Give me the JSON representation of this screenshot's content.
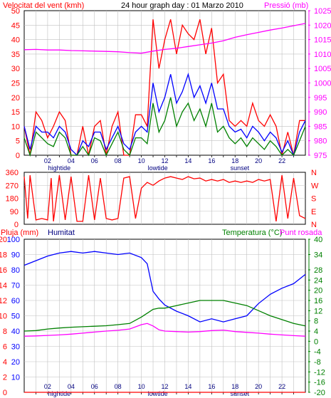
{
  "colors": {
    "background": "#ffffff",
    "wind_speed": "#ff0000",
    "wind_avg": "#008000",
    "wind_mid": "#0000ff",
    "pressure": "#ff00ff",
    "rain": "#ff0000",
    "humidity": "#0000ff",
    "temperature": "#008000",
    "dewpoint": "#ff00ff",
    "tick": "#ff0000",
    "hour_label": "#000080",
    "grid": "#c0c0c0"
  },
  "header": {
    "left_label": "Velocitat del vent (kmh)",
    "title": "24 hour graph day : 01 Marzo 2010",
    "right_label": "Pressió (mb)"
  },
  "bottom_header": {
    "rain_label": "Pluja (mm)",
    "humidity_label": "Humitat",
    "temp_label": "Temperatura (°C)",
    "dew_label": "Punt rosada"
  },
  "hour_labels": [
    "02",
    "04",
    "06",
    "08",
    "10",
    "12",
    "14",
    "16",
    "18",
    "20",
    "22"
  ],
  "events_top": [
    {
      "label": "hightide",
      "hour": 3.0
    },
    {
      "label": "lowtide",
      "hour": 11.4
    },
    {
      "label": "sunset",
      "hour": 18.4
    }
  ],
  "events_bottom": [
    {
      "label": "hightide",
      "hour": 3.0
    },
    {
      "label": "lowtide",
      "hour": 11.4
    },
    {
      "label": "sunset",
      "hour": 18.4
    }
  ],
  "chart_data": [
    {
      "type": "line",
      "panel": "wind_speed_pressure",
      "x_range_hours": [
        0,
        24
      ],
      "y_left": {
        "ticks": [
          "0",
          "5",
          "10",
          "15",
          "20",
          "25",
          "30",
          "35",
          "40",
          "45",
          "50"
        ],
        "ylim": [
          0,
          50
        ]
      },
      "y_right": {
        "ticks": [
          "975",
          "980",
          "985",
          "990",
          "995",
          "1000",
          "1005",
          "1010",
          "1015",
          "1020",
          "1025"
        ],
        "ylim": [
          975,
          1025
        ]
      },
      "series": [
        {
          "key": "gust",
          "axis": "left",
          "color": "#ff0000",
          "x": [
            0,
            0.5,
            1,
            1.5,
            2,
            2.5,
            3,
            3.5,
            4,
            4.5,
            5,
            5.5,
            6,
            6.5,
            7,
            7.5,
            8,
            8.5,
            9,
            9.5,
            10,
            10.5,
            11,
            11.5,
            12,
            12.5,
            13,
            13.5,
            14,
            14.5,
            15,
            15.5,
            16,
            16.5,
            17,
            17.5,
            18,
            18.5,
            19,
            19.5,
            20,
            20.5,
            21,
            21.5,
            22,
            22.5,
            23,
            23.5,
            24
          ],
          "y": [
            10,
            0,
            15,
            12,
            6,
            10,
            15,
            12,
            0,
            0,
            10,
            0,
            10,
            12,
            0,
            10,
            15,
            0,
            0,
            14,
            14,
            10,
            47,
            30,
            40,
            47,
            35,
            45,
            42,
            40,
            47,
            35,
            44,
            25,
            28,
            12,
            10,
            12,
            10,
            18,
            12,
            10,
            14,
            10,
            0,
            8,
            0,
            12,
            12
          ]
        },
        {
          "key": "mid",
          "axis": "left",
          "color": "#0000ff",
          "x": [
            0,
            0.5,
            1,
            1.5,
            2,
            2.5,
            3,
            3.5,
            4,
            4.5,
            5,
            5.5,
            6,
            6.5,
            7,
            7.5,
            8,
            8.5,
            9,
            9.5,
            10,
            10.5,
            11,
            11.5,
            12,
            12.5,
            13,
            13.5,
            14,
            14.5,
            15,
            15.5,
            16,
            16.5,
            17,
            17.5,
            18,
            18.5,
            19,
            19.5,
            20,
            20.5,
            21,
            21.5,
            22,
            22.5,
            23,
            23.5,
            24
          ],
          "y": [
            10,
            2,
            10,
            8,
            8,
            6,
            10,
            8,
            2,
            0,
            5,
            3,
            8,
            8,
            2,
            6,
            10,
            4,
            2,
            8,
            10,
            8,
            25,
            15,
            20,
            28,
            18,
            22,
            28,
            20,
            24,
            18,
            25,
            16,
            16,
            10,
            8,
            9,
            6,
            10,
            8,
            5,
            8,
            6,
            1,
            5,
            0,
            8,
            12
          ]
        },
        {
          "key": "avg",
          "axis": "left",
          "color": "#008000",
          "x": [
            0,
            0.5,
            1,
            1.5,
            2,
            2.5,
            3,
            3.5,
            4,
            4.5,
            5,
            5.5,
            6,
            6.5,
            7,
            7.5,
            8,
            8.5,
            9,
            9.5,
            10,
            10.5,
            11,
            11.5,
            12,
            12.5,
            13,
            13.5,
            14,
            14.5,
            15,
            15.5,
            16,
            16.5,
            17,
            17.5,
            18,
            18.5,
            19,
            19.5,
            20,
            20.5,
            21,
            21.5,
            22,
            22.5,
            23,
            23.5,
            24
          ],
          "y": [
            6,
            0,
            8,
            6,
            4,
            3,
            8,
            6,
            0,
            0,
            3,
            0,
            6,
            5,
            0,
            4,
            8,
            2,
            0,
            6,
            6,
            4,
            18,
            8,
            12,
            20,
            10,
            15,
            18,
            12,
            16,
            10,
            18,
            8,
            10,
            6,
            4,
            6,
            3,
            6,
            4,
            2,
            5,
            3,
            0,
            2,
            0,
            5,
            10
          ]
        },
        {
          "key": "pressure",
          "axis": "right",
          "color": "#ff00ff",
          "x": [
            0,
            1,
            2,
            3,
            4,
            5,
            6,
            7,
            8,
            9,
            10,
            11,
            12,
            13,
            14,
            15,
            16,
            17,
            18,
            19,
            20,
            21,
            22,
            23,
            24
          ],
          "y": [
            1011.5,
            1011.6,
            1011.4,
            1011.4,
            1011.2,
            1011.1,
            1011.0,
            1010.9,
            1010.8,
            1010.5,
            1010.3,
            1011.0,
            1011.6,
            1012.0,
            1012.6,
            1013.2,
            1013.8,
            1014.6,
            1015.8,
            1016.7,
            1017.5,
            1018.3,
            1019.0,
            1019.8,
            1020.6
          ]
        }
      ]
    },
    {
      "type": "line",
      "panel": "wind_direction",
      "x_range_hours": [
        0,
        24
      ],
      "y_left": {
        "ticks": [
          "0",
          "90",
          "180",
          "270",
          "360"
        ],
        "ylim": [
          0,
          360
        ]
      },
      "y_right": {
        "ticks": [
          "N",
          "E",
          "S",
          "W",
          "N"
        ]
      },
      "series": [
        {
          "key": "direction",
          "color": "#ff0000",
          "x": [
            0,
            0.3,
            0.5,
            1,
            1.5,
            2,
            2.3,
            2.5,
            3,
            3.5,
            4,
            4.5,
            5,
            5.5,
            6,
            6.5,
            7,
            7.5,
            8,
            8.5,
            9,
            9.5,
            10,
            10.5,
            11,
            11.5,
            12,
            12.5,
            13,
            13.5,
            14,
            14.5,
            15,
            15.5,
            16,
            16.5,
            17,
            17.5,
            18,
            18.5,
            19,
            19.5,
            20,
            20.5,
            21,
            21.5,
            22,
            22.5,
            23,
            23.5,
            24
          ],
          "y": [
            330,
            40,
            340,
            30,
            40,
            30,
            320,
            20,
            340,
            30,
            330,
            20,
            20,
            340,
            30,
            320,
            40,
            30,
            40,
            320,
            330,
            40,
            250,
            290,
            270,
            300,
            320,
            330,
            320,
            310,
            330,
            315,
            320,
            300,
            310,
            300,
            310,
            290,
            300,
            290,
            300,
            290,
            310,
            300,
            310,
            20,
            340,
            40,
            320,
            60,
            40
          ]
        }
      ]
    },
    {
      "type": "line",
      "panel": "humidity_temperature",
      "x_range_hours": [
        0,
        24
      ],
      "y_left_rain": {
        "ticks": [
          "0",
          "2",
          "4",
          "6",
          "8",
          "10",
          "12",
          "14",
          "16",
          "18",
          "20"
        ],
        "ylim": [
          0,
          20
        ]
      },
      "y_left_hum": {
        "ticks": [
          "10",
          "20",
          "30",
          "40",
          "50",
          "60",
          "70",
          "80",
          "90",
          "100"
        ],
        "ylim": [
          0,
          100
        ]
      },
      "y_right": {
        "ticks": [
          "-20",
          "-16",
          "-12",
          "-8",
          "-4",
          "0",
          "4",
          "8",
          "12",
          "16",
          "20",
          "24",
          "28",
          "34",
          "40"
        ],
        "ylim": [
          -20,
          40
        ]
      },
      "series": [
        {
          "key": "humidity",
          "axis": "hum",
          "color": "#0000ff",
          "x": [
            0,
            1,
            2,
            3,
            4,
            5,
            6,
            7,
            8,
            9,
            10,
            10.5,
            11,
            11.5,
            12,
            13,
            14,
            15,
            16,
            17,
            18,
            19,
            20,
            21,
            22,
            23,
            24
          ],
          "y": [
            83,
            86,
            89,
            91,
            92,
            91,
            92,
            91,
            90,
            91,
            88,
            84,
            66,
            61,
            57,
            53,
            50,
            46,
            48,
            46,
            48,
            50,
            58,
            64,
            68,
            71,
            77
          ]
        },
        {
          "key": "temperature",
          "axis": "right",
          "color": "#008000",
          "x": [
            0,
            1,
            2,
            3,
            4,
            5,
            6,
            7,
            8,
            9,
            10,
            10.5,
            11,
            11.5,
            12,
            13,
            14,
            15,
            16,
            17,
            18,
            19,
            20,
            21,
            22,
            23,
            24
          ],
          "y": [
            4.0,
            4.2,
            4.8,
            5.2,
            5.5,
            5.7,
            5.9,
            6.1,
            6.5,
            7.0,
            9.5,
            11.0,
            12.5,
            13.0,
            13.0,
            14.0,
            15.0,
            16.0,
            16.0,
            16.0,
            15.0,
            14.0,
            12.0,
            10.0,
            8.5,
            7.0,
            6.0
          ]
        },
        {
          "key": "dewpoint",
          "axis": "right",
          "color": "#ff00ff",
          "x": [
            0,
            1,
            2,
            3,
            4,
            5,
            6,
            7,
            8,
            9,
            10,
            10.5,
            11,
            11.5,
            12,
            13,
            14,
            15,
            16,
            17,
            18,
            19,
            20,
            21,
            22,
            23,
            24
          ],
          "y": [
            2.0,
            2.1,
            2.3,
            2.5,
            2.8,
            3.2,
            3.6,
            4.0,
            4.3,
            4.8,
            6.5,
            7.0,
            6.0,
            4.5,
            4.0,
            3.8,
            3.6,
            3.8,
            4.2,
            4.4,
            3.8,
            3.5,
            3.2,
            2.8,
            2.5,
            2.2,
            2.0
          ]
        },
        {
          "key": "rain",
          "axis": "rain",
          "color": "#ff0000",
          "x": [
            0,
            24
          ],
          "y": [
            0,
            0
          ]
        }
      ]
    }
  ]
}
